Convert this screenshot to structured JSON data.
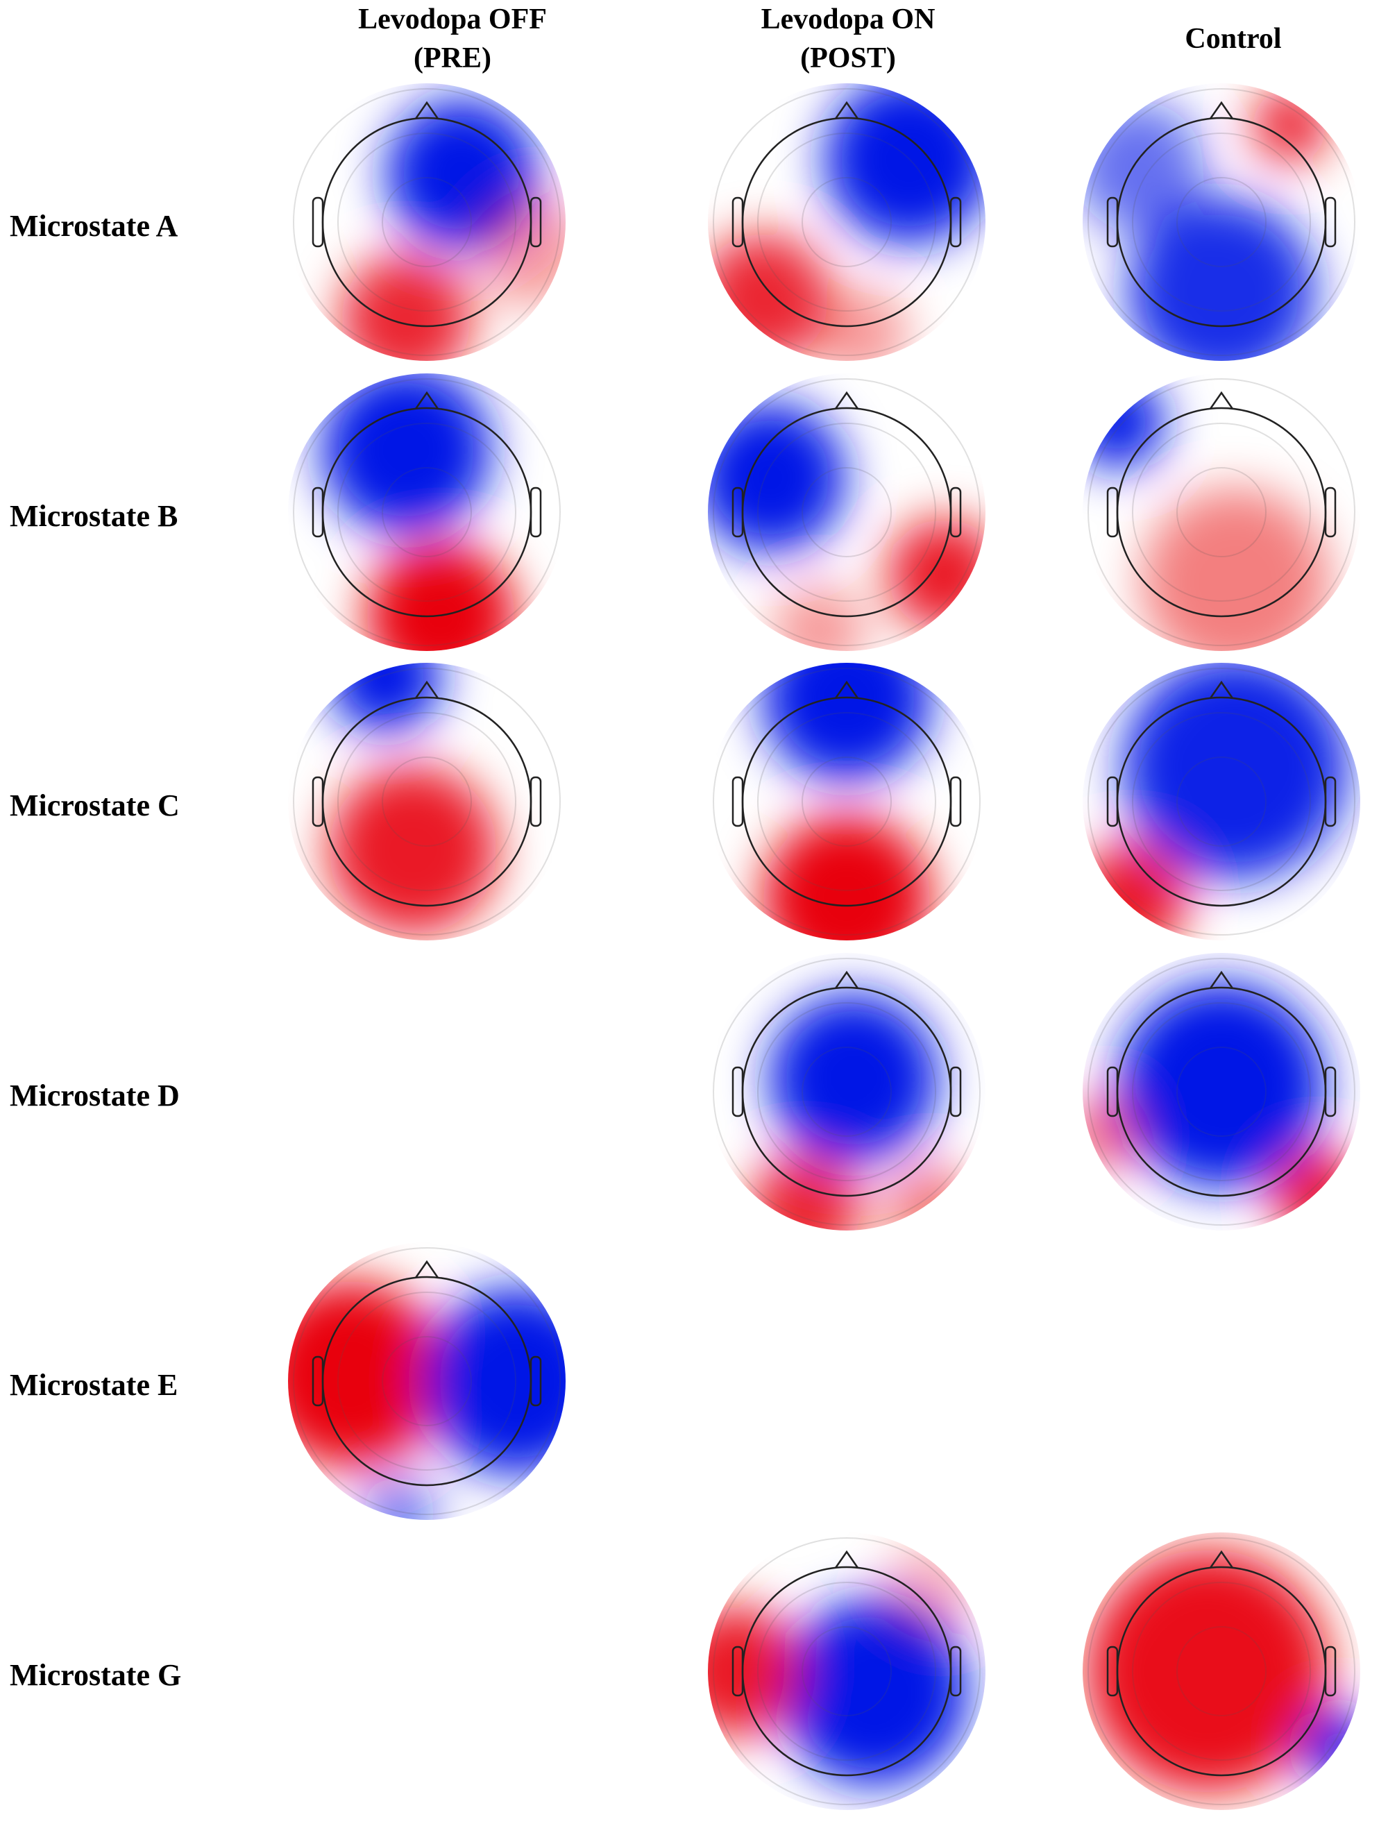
{
  "columns": [
    {
      "line1": "Levodopa OFF",
      "line2": "(PRE)"
    },
    {
      "line1": "Levodopa ON",
      "line2": "(POST)"
    },
    {
      "line1": "",
      "line2": "Control"
    }
  ],
  "rows": [
    "Microstate A",
    "Microstate B",
    "Microstate C",
    "Microstate D",
    "Microstate E",
    "Microstate G"
  ],
  "colors": {
    "positive": "#e8000b",
    "negative": "#0014e6",
    "neutral": "#ffffff",
    "outline": "#222222"
  },
  "maps": [
    {
      "row": 0,
      "col": 0,
      "label": "Microstate A, Levodopa OFF (PRE)",
      "blobs": [
        [
          0.25,
          -0.35,
          1,
          0.4
        ],
        [
          -0.15,
          0.7,
          -0.85,
          0.35
        ],
        [
          0.75,
          0.2,
          -0.4,
          0.3
        ]
      ]
    },
    {
      "row": 0,
      "col": 1,
      "label": "Microstate A, Levodopa ON (POST)",
      "blobs": [
        [
          0.45,
          -0.45,
          1,
          0.45
        ],
        [
          -0.6,
          0.55,
          -0.85,
          0.35
        ],
        [
          0.1,
          0.8,
          -0.4,
          0.25
        ]
      ]
    },
    {
      "row": 0,
      "col": 2,
      "label": "Microstate A, Control",
      "blobs": [
        [
          0.5,
          -0.7,
          -0.9,
          0.2
        ],
        [
          0.0,
          0.5,
          0.9,
          0.5
        ],
        [
          -0.6,
          -0.4,
          0.6,
          0.35
        ]
      ]
    },
    {
      "row": 1,
      "col": 0,
      "label": "Microstate B, Levodopa OFF (PRE)",
      "blobs": [
        [
          -0.15,
          -0.45,
          1,
          0.45
        ],
        [
          0.1,
          0.75,
          -1,
          0.4
        ]
      ]
    },
    {
      "row": 1,
      "col": 1,
      "label": "Microstate B, Levodopa ON (POST)",
      "blobs": [
        [
          -0.55,
          -0.25,
          1,
          0.4
        ],
        [
          0.7,
          0.45,
          -0.9,
          0.3
        ],
        [
          -0.2,
          0.85,
          -0.4,
          0.25
        ]
      ]
    },
    {
      "row": 1,
      "col": 2,
      "label": "Microstate B, Control",
      "blobs": [
        [
          -0.75,
          -0.65,
          1,
          0.25
        ],
        [
          0.1,
          0.5,
          -0.5,
          0.5
        ]
      ]
    },
    {
      "row": 2,
      "col": 0,
      "label": "Microstate C, Levodopa OFF (PRE)",
      "blobs": [
        [
          -0.3,
          -0.9,
          1,
          0.3
        ],
        [
          -0.1,
          0.35,
          -0.9,
          0.45
        ]
      ]
    },
    {
      "row": 2,
      "col": 1,
      "label": "Microstate C, Levodopa ON (POST)",
      "blobs": [
        [
          0,
          -0.75,
          1,
          0.45
        ],
        [
          0,
          0.7,
          -1,
          0.45
        ]
      ]
    },
    {
      "row": 2,
      "col": 2,
      "label": "Microstate C, Control",
      "blobs": [
        [
          0.1,
          -0.25,
          0.95,
          0.6
        ],
        [
          -0.65,
          0.7,
          -0.9,
          0.3
        ]
      ]
    },
    {
      "row": 3,
      "col": 1,
      "label": "Microstate D, Levodopa ON (POST)",
      "blobs": [
        [
          0.05,
          -0.1,
          1,
          0.45
        ],
        [
          -0.3,
          0.85,
          -0.85,
          0.3
        ],
        [
          0.6,
          0.85,
          -0.5,
          0.25
        ]
      ]
    },
    {
      "row": 3,
      "col": 2,
      "label": "Microstate D, Control",
      "blobs": [
        [
          0.0,
          -0.05,
          1,
          0.55
        ],
        [
          0.7,
          0.75,
          -0.9,
          0.25
        ],
        [
          -0.85,
          0.3,
          -0.6,
          0.2
        ]
      ]
    },
    {
      "row": 4,
      "col": 0,
      "label": "Microstate E, Levodopa OFF (PRE)",
      "blobs": [
        [
          -0.55,
          -0.05,
          -1,
          0.5
        ],
        [
          0.65,
          0.0,
          1,
          0.5
        ],
        [
          -0.2,
          0.95,
          0.6,
          0.2
        ]
      ]
    },
    {
      "row": 5,
      "col": 1,
      "label": "Microstate G, Levodopa ON (POST)",
      "blobs": [
        [
          0.2,
          0.15,
          1,
          0.5
        ],
        [
          -0.8,
          0.0,
          -0.9,
          0.35
        ],
        [
          0.6,
          -0.6,
          -0.3,
          0.25
        ]
      ]
    },
    {
      "row": 5,
      "col": 2,
      "label": "Microstate G, Control",
      "blobs": [
        [
          -0.1,
          0.0,
          -0.95,
          0.65
        ],
        [
          0.85,
          0.55,
          1,
          0.2
        ]
      ]
    }
  ]
}
